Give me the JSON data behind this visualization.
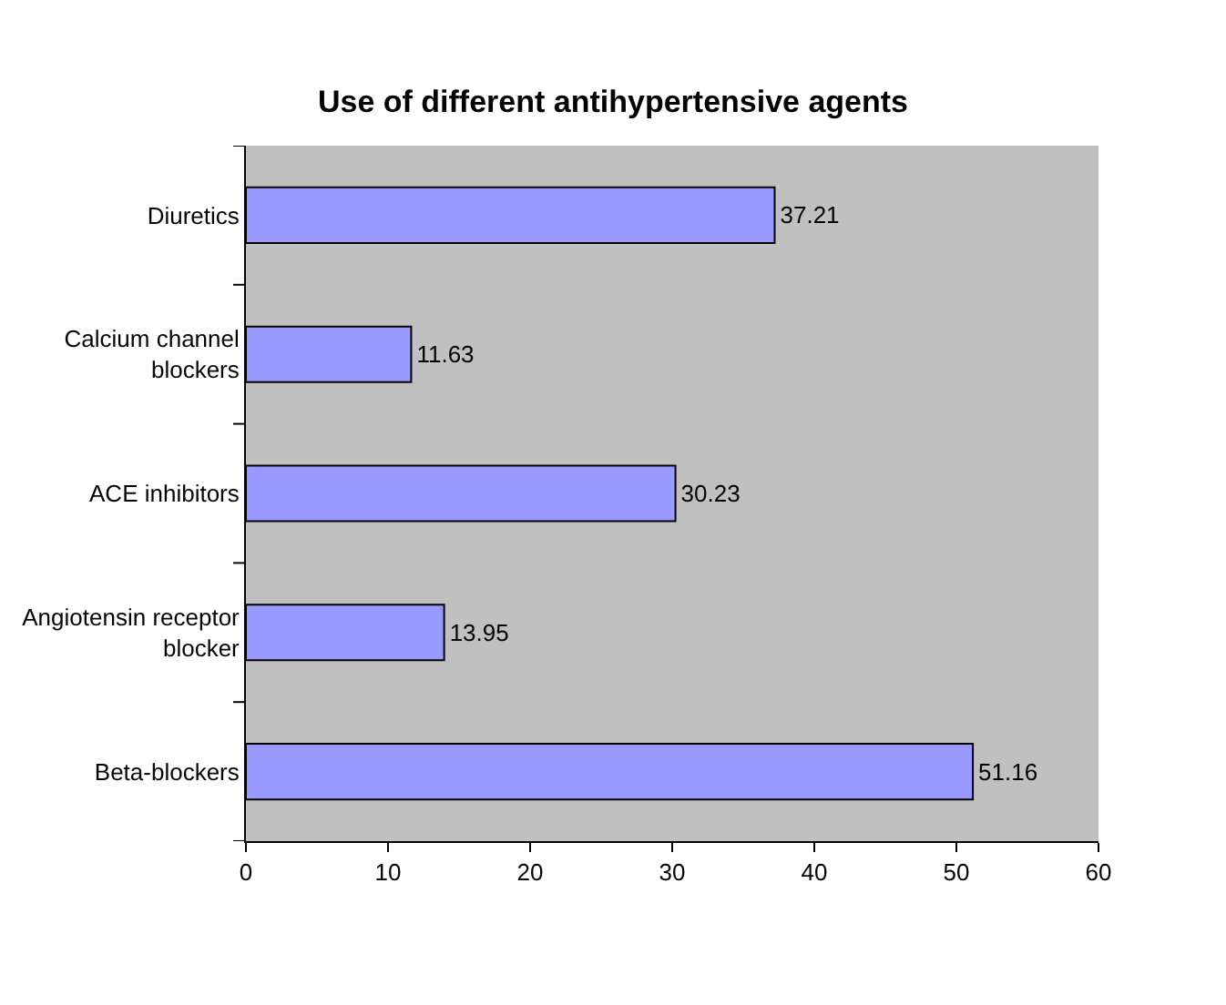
{
  "chart_data": {
    "type": "bar",
    "orientation": "horizontal",
    "title": "Use of different antihypertensive agents",
    "categories": [
      "Diuretics",
      "Calcium channel\nblockers",
      "ACE inhibitors",
      "Angiotensin receptor\nblocker",
      "Beta-blockers"
    ],
    "values": [
      37.21,
      11.63,
      30.23,
      13.95,
      51.16
    ],
    "color": "#9999ff",
    "data_labels": true,
    "grid": false,
    "legend": false,
    "xlim": [
      0,
      60
    ],
    "xticks": [
      0,
      10,
      20,
      30,
      40,
      50,
      60
    ]
  }
}
